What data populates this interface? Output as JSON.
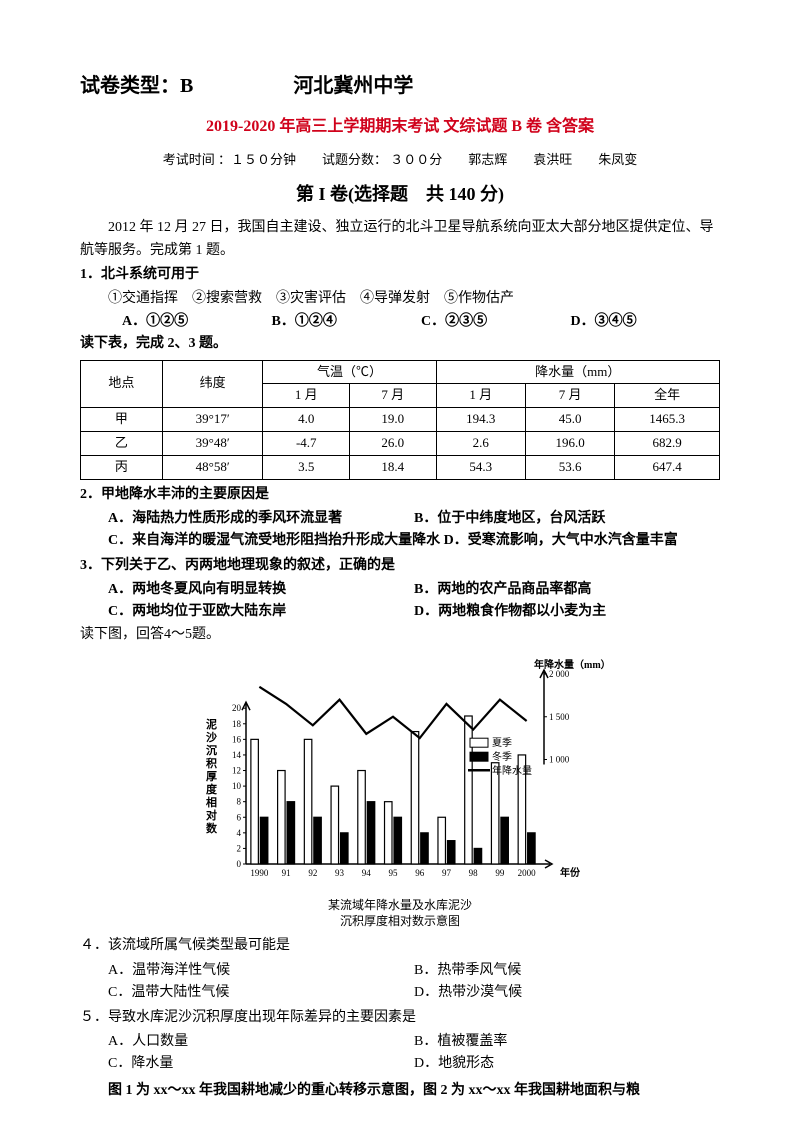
{
  "header": {
    "paper_type_label": "试卷类型：B",
    "school": "河北冀州中学"
  },
  "red_title": "2019-2020 年高三上学期期末考试 文综试题 B 卷 含答案",
  "exam_info": "考试时间 ：１５０分钟　　试题分数： ３００分　　郭志辉　　袁洪旺　　朱凤变",
  "section_title": "第 I 卷(选择题　共 140 分)",
  "intro_p1": "2012 年 12 月 27 日，我国自主建设、独立运行的北斗卫星导航系统向亚太大部分地区提供定位、导航等服务。完成第 1 题。",
  "q1": {
    "stem": "1．北斗系统可用于",
    "sub": "①交通指挥　②搜索营救　③灾害评估　④导弹发射　⑤作物估产",
    "A": "A．①②⑤",
    "B": "B．①②④",
    "C": "C．②③⑤",
    "D": "D．③④⑤"
  },
  "pre_table": "读下表，完成 2、3 题。",
  "table": {
    "head": {
      "loc": "地点",
      "lat": "纬度",
      "temp": "气温（℃）",
      "precip": "降水量（mm）",
      "jan": "1 月",
      "jul": "7 月",
      "year": "全年"
    },
    "rows": [
      {
        "loc": "甲",
        "lat": "39°17′",
        "t1": "4.0",
        "t7": "19.0",
        "p1": "194.3",
        "p7": "45.0",
        "py": "1465.3"
      },
      {
        "loc": "乙",
        "lat": "39°48′",
        "t1": "-4.7",
        "t7": "26.0",
        "p1": "2.6",
        "p7": "196.0",
        "py": "682.9"
      },
      {
        "loc": "丙",
        "lat": "48°58′",
        "t1": "3.5",
        "t7": "18.4",
        "p1": "54.3",
        "p7": "53.6",
        "py": "647.4"
      }
    ]
  },
  "q2": {
    "stem": "2．甲地降水丰沛的主要原因是",
    "A": "A．海陆热力性质形成的季风环流显著",
    "B": "B．位于中纬度地区，台风活跃",
    "C": "C．来自海洋的暖湿气流受地形阻挡抬升形成大量降水",
    "D": "D．受寒流影响，大气中水汽含量丰富"
  },
  "q3": {
    "stem": "3．下列关于乙、丙两地地理现象的叙述，正确的是",
    "A": "A．两地冬夏风向有明显转换",
    "B": "B．两地的农产品商品率都高",
    "C": "C．两地均位于亚欧大陆东岸",
    "D": "D．两地粮食作物都以小麦为主"
  },
  "pre_chart": "读下图，回答4～5题。",
  "chart": {
    "title_l1": "某流域年降水量及水库泥沙",
    "title_l2": "沉积厚度相对数示意图",
    "y1_label": "泥沙沉积厚度相对数",
    "y2_label": "年降水量（mm）",
    "x_label": "年份",
    "y1_ticks": [
      0,
      2,
      4,
      6,
      8,
      10,
      12,
      14,
      16,
      18,
      20
    ],
    "y2_ticks": [
      1000,
      1500,
      2000
    ],
    "x_ticks": [
      "1990",
      "91",
      "92",
      "93",
      "94",
      "95",
      "96",
      "97",
      "98",
      "99",
      "2000"
    ],
    "legend": {
      "summer": "夏季",
      "winter": "冬季",
      "line": "年降水量"
    },
    "summer": [
      16,
      12,
      16,
      10,
      12,
      8,
      17,
      6,
      19,
      13,
      14
    ],
    "winter": [
      6,
      8,
      6,
      4,
      8,
      6,
      4,
      3,
      2,
      6,
      4
    ],
    "line": [
      1850,
      1650,
      1400,
      1700,
      1300,
      1500,
      1250,
      1650,
      1350,
      1700,
      1450
    ],
    "bar_color_summer": "#ffffff",
    "bar_color_winter": "#000000",
    "bar_border": "#000000",
    "line_color": "#000000",
    "bg": "#ffffff",
    "y1_max": 20,
    "y2_min": 1000,
    "y2_max": 2000
  },
  "q4": {
    "stem": "４．该流域所属气候类型最可能是",
    "A": "A．温带海洋性气候",
    "B": "B．热带季风气候",
    "C": "C．温带大陆性气候",
    "D": "D．热带沙漠气候"
  },
  "q5": {
    "stem": "５．导致水库泥沙沉积厚度出现年际差异的主要因素是",
    "A": "A．人口数量",
    "B": "B．植被覆盖率",
    "C": "C．降水量",
    "D": "D．地貌形态"
  },
  "footer": "图 1 为 xx～xx 年我国耕地减少的重心转移示意图，图 2 为 xx～xx 年我国耕地面积与粮"
}
